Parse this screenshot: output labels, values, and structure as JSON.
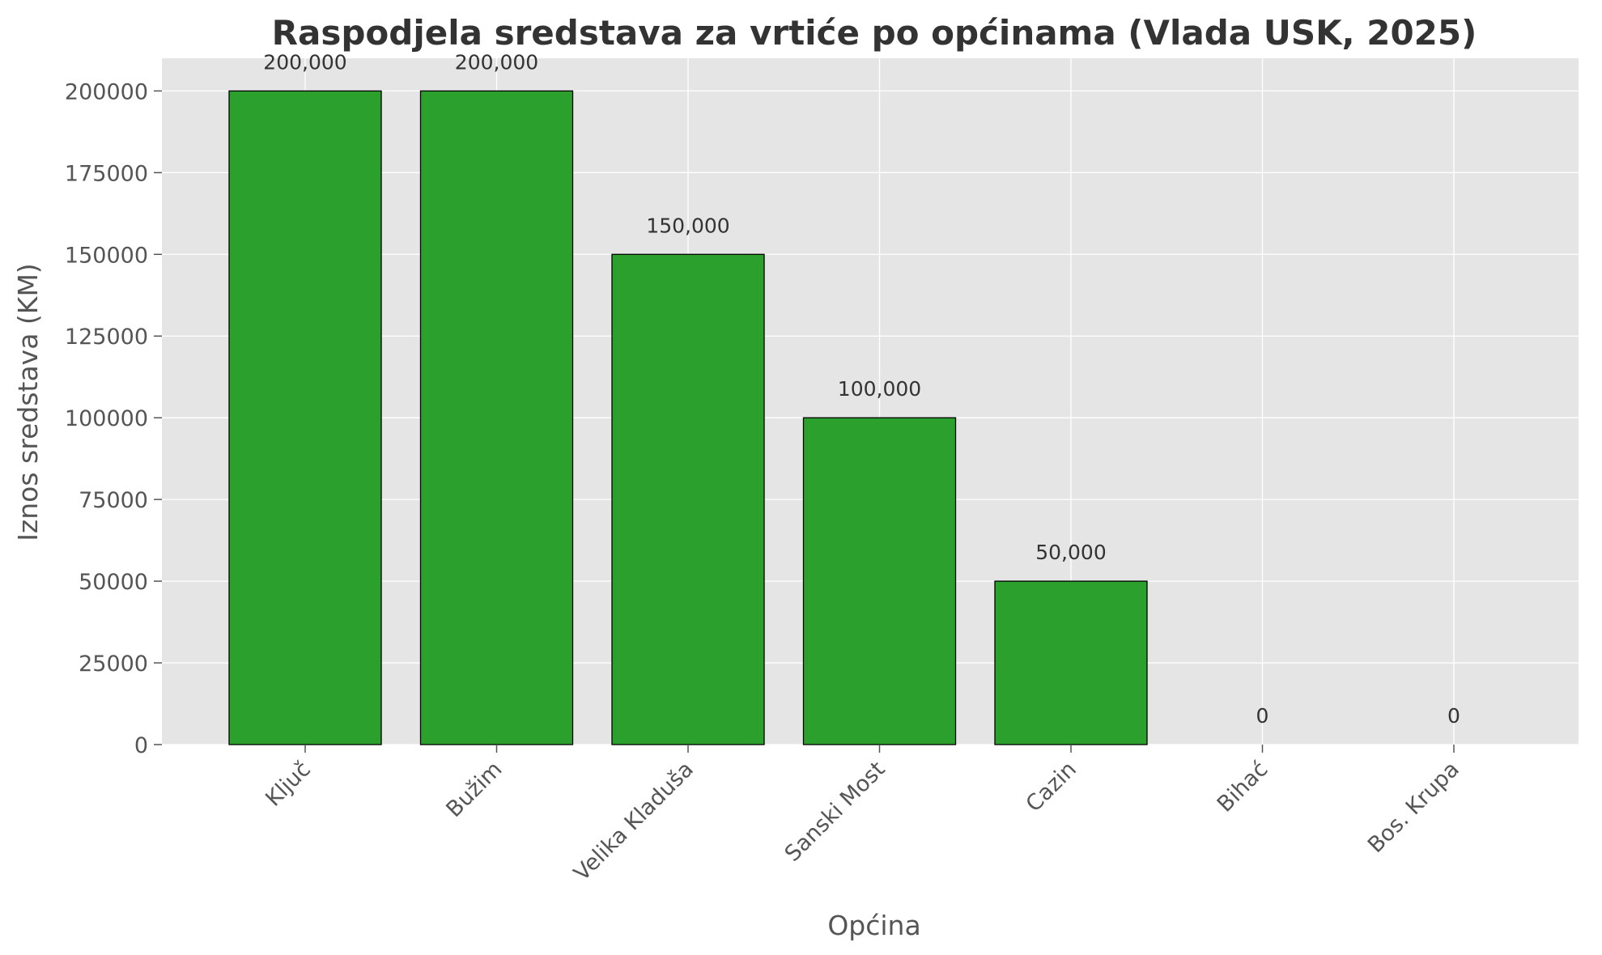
{
  "chart_data": {
    "type": "bar",
    "title": "Raspodjela sredstava za vrtiće po općinama (Vlada USK, 2025)",
    "xlabel": "Općina",
    "ylabel": "Iznos sredstava (KM)",
    "categories": [
      "Ključ",
      "Bužim",
      "Velika Kladuša",
      "Sanski Most",
      "Cazin",
      "Bihać",
      "Bos. Krupa"
    ],
    "values": [
      200000,
      200000,
      150000,
      100000,
      50000,
      0,
      0
    ],
    "data_labels": [
      "200,000",
      "200,000",
      "150,000",
      "100,000",
      "50,000",
      "0",
      "0"
    ],
    "ylim": [
      0,
      210000
    ],
    "yticks": [
      0,
      25000,
      50000,
      75000,
      100000,
      125000,
      150000,
      175000,
      200000
    ],
    "ytick_labels": [
      "0",
      "25000",
      "50000",
      "75000",
      "100000",
      "125000",
      "150000",
      "175000",
      "200000"
    ],
    "grid": true,
    "legend": "none",
    "colors": {
      "bar": "#2ca02c",
      "bar_edge": "#000000",
      "plot_bg": "#e5e5e5",
      "grid": "#ffffff"
    }
  }
}
